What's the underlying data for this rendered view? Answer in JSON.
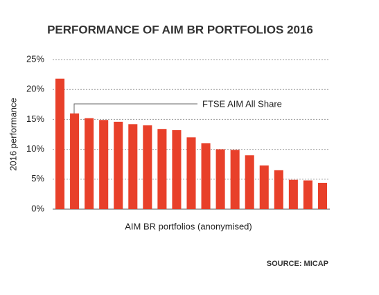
{
  "chart_data": {
    "type": "bar",
    "title": "PERFORMANCE OF AIM BR PORTFOLIOS 2016",
    "x_label": "AIM BR portfolios (anonymised)",
    "y_label": "2016 performance",
    "annotation": "FTSE AIM All Share",
    "source": "SOURCE: MICAP",
    "categories": [
      null,
      null,
      null,
      null,
      null,
      null,
      null,
      null,
      null,
      null,
      null,
      null,
      null,
      null,
      null,
      null,
      null,
      null,
      null
    ],
    "values": [
      21.8,
      16.0,
      15.2,
      14.9,
      14.6,
      14.2,
      14.0,
      13.4,
      13.2,
      12.0,
      11.0,
      10.0,
      9.9,
      9.0,
      7.3,
      6.5,
      4.9,
      4.8,
      4.4
    ],
    "color": "#e8402a",
    "ylim": [
      0,
      25
    ],
    "yticks": [
      {
        "value": 0,
        "label": "0%"
      },
      {
        "value": 5,
        "label": "5%"
      },
      {
        "value": 10,
        "label": "10%"
      },
      {
        "value": 15,
        "label": "15%"
      },
      {
        "value": 20,
        "label": "20%"
      },
      {
        "value": 25,
        "label": "25%"
      }
    ],
    "grid": true
  }
}
